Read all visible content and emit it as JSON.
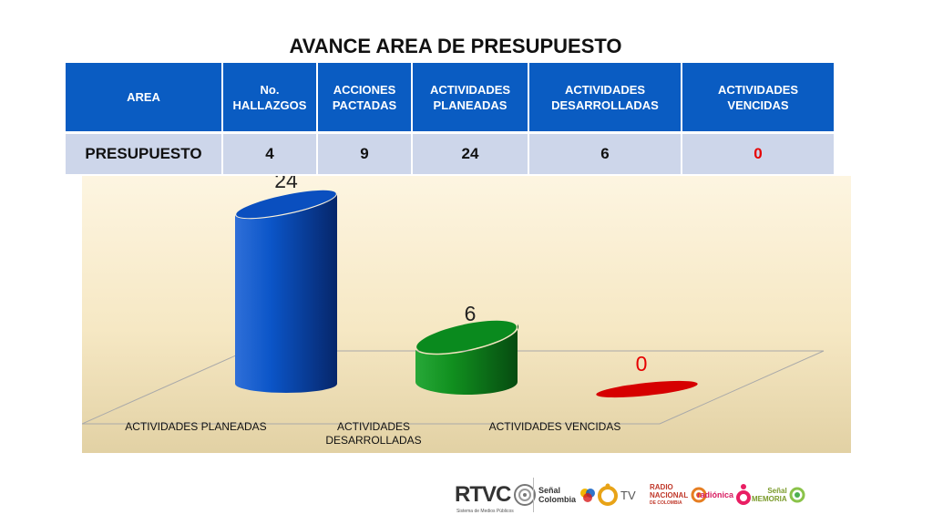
{
  "title": "AVANCE AREA DE PRESUPUESTO",
  "table": {
    "headers": [
      [
        "AREA"
      ],
      [
        "No.",
        "HALLAZGOS"
      ],
      [
        "ACCIONES",
        "PACTADAS"
      ],
      [
        "ACTIVIDADES",
        "PLANEADAS"
      ],
      [
        "ACTIVIDADES",
        "DESARROLLADAS"
      ],
      [
        "ACTIVIDADES",
        "VENCIDAS"
      ]
    ],
    "row": [
      "PRESUPUESTO",
      "4",
      "9",
      "24",
      "6",
      "0"
    ]
  },
  "chart_data": {
    "type": "bar",
    "style": "3d-cylinder",
    "categories": [
      "ACTIVIDADES PLANEADAS",
      "ACTIVIDADES DESARROLLADAS",
      "ACTIVIDADES VENCIDAS"
    ],
    "category_lines": [
      [
        "ACTIVIDADES PLANEADAS"
      ],
      [
        "ACTIVIDADES",
        "DESARROLLADAS"
      ],
      [
        "ACTIVIDADES VENCIDAS"
      ]
    ],
    "values": [
      24,
      6,
      0
    ],
    "data_labels": [
      "24",
      "6",
      "0"
    ],
    "colors": [
      "#0a4fbf",
      "#0a8a1e",
      "#d60000"
    ],
    "label_colors": [
      "#222222",
      "#222222",
      "#e60000"
    ],
    "background": [
      "#fdf5e1",
      "#e2d1a4"
    ]
  },
  "footer": {
    "logos": [
      {
        "name": "RTVC",
        "text": "RTVC",
        "subtitle": "Sistema de Medios Públicos"
      },
      {
        "name": "Señal Colombia",
        "text": [
          "Señal",
          "Colombia"
        ]
      },
      {
        "name": "Canal Institucional",
        "text": "TV"
      },
      {
        "name": "Radio Nacional",
        "text": [
          "RADIO",
          "NACIONAL",
          "DE COLOMBIA"
        ]
      },
      {
        "name": "Radiónica",
        "text": "radiónica"
      },
      {
        "name": "Señal Memoria",
        "text": [
          "Señal",
          "MEMORIA"
        ]
      }
    ]
  }
}
